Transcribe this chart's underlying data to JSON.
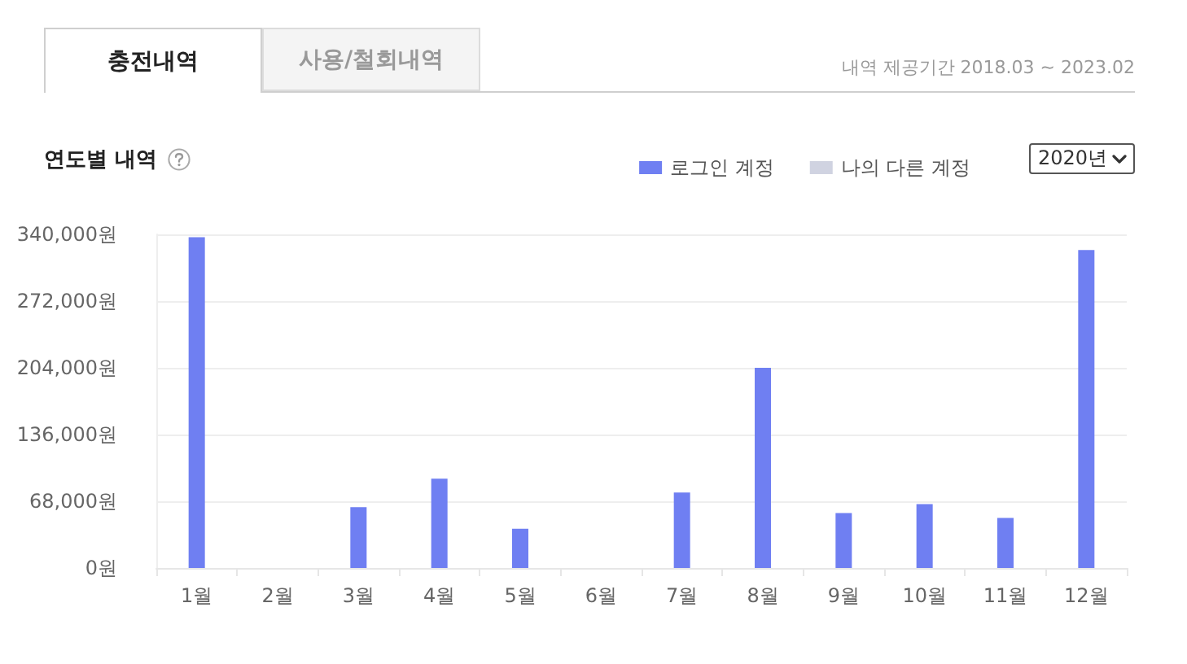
{
  "chart_data": {
    "type": "bar",
    "title": "연도별 내역",
    "annotations": [
      "충전내역",
      "사용/철회내역",
      "내역 제공기간 2018.03 ~ 2023.02",
      "2020년"
    ],
    "categories": [
      "1월",
      "2월",
      "3월",
      "4월",
      "5월",
      "6월",
      "7월",
      "8월",
      "9월",
      "10월",
      "11월",
      "12월"
    ],
    "series": [
      {
        "name": "로그인 계정",
        "color": "#6f7ff2",
        "values": [
          337000,
          0,
          62000,
          91000,
          40000,
          0,
          77000,
          204000,
          56000,
          65000,
          51000,
          324000
        ]
      },
      {
        "name": "나의 다른 계정",
        "color": "#d0d3e1",
        "values": [
          0,
          0,
          0,
          0,
          0,
          0,
          0,
          0,
          0,
          0,
          0,
          0
        ]
      }
    ],
    "stacked": true,
    "ylim": [
      0,
      340000
    ],
    "yticks": [
      {
        "value": 0,
        "label": "0원"
      },
      {
        "value": 68000,
        "label": "68,000원"
      },
      {
        "value": 136000,
        "label": "136,000원"
      },
      {
        "value": 204000,
        "label": "204,000원"
      },
      {
        "value": 272000,
        "label": "272,000원"
      },
      {
        "value": 340000,
        "label": "340,000원"
      }
    ],
    "grid": "y",
    "legend": "top right"
  }
}
